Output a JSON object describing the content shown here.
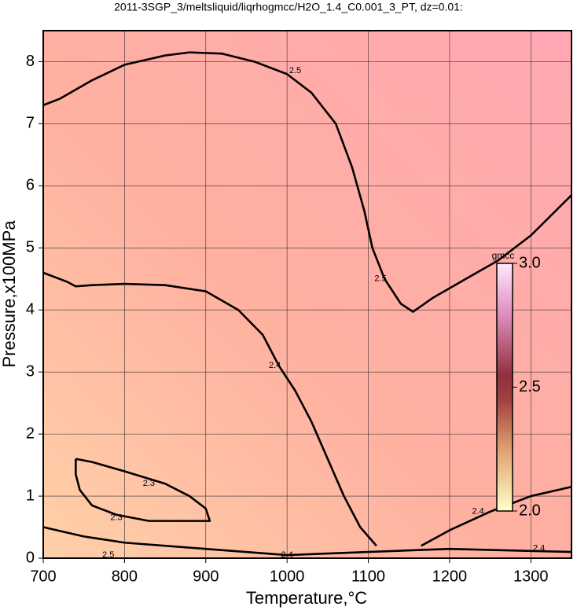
{
  "chart_data": {
    "type": "contour",
    "title": "2011-3SGP_3/meltsliquid/liqrhogmcc/H2O_1.4_C0.001_3_PT, dz=0.01:",
    "xlabel": "Temperature,°C",
    "ylabel": "Pressure,x100MPa",
    "xlim": [
      700,
      1350
    ],
    "ylim": [
      0,
      8.5
    ],
    "xticks": [
      700,
      800,
      900,
      1000,
      1100,
      1200,
      1300
    ],
    "yticks": [
      0,
      1,
      2,
      3,
      4,
      5,
      6,
      7,
      8
    ],
    "grid": true,
    "color": "#000000",
    "series": [
      {
        "name": "2.5",
        "x": [
          700,
          720,
          760,
          800,
          850,
          880,
          920,
          960,
          1000,
          1030,
          1060,
          1080,
          1095,
          1105,
          1120,
          1140,
          1155,
          1180,
          1220,
          1260,
          1300,
          1350
        ],
        "values": [
          7.3,
          7.4,
          7.7,
          7.95,
          8.1,
          8.15,
          8.13,
          8.0,
          7.8,
          7.5,
          7.0,
          6.3,
          5.6,
          5.0,
          4.5,
          4.1,
          3.97,
          4.2,
          4.5,
          4.8,
          5.2,
          5.85
        ]
      },
      {
        "name": "2.4",
        "x": [
          700,
          730,
          740,
          760,
          800,
          850,
          900,
          940,
          970,
          990,
          1010,
          1030,
          1050,
          1070,
          1090,
          1110
        ],
        "values": [
          4.6,
          4.45,
          4.38,
          4.4,
          4.42,
          4.4,
          4.3,
          4.0,
          3.6,
          3.1,
          2.7,
          2.2,
          1.6,
          1.0,
          0.5,
          0.2
        ]
      },
      {
        "name": "2.4",
        "x": [
          1165,
          1200,
          1250,
          1300,
          1350
        ],
        "values": [
          0.2,
          0.45,
          0.75,
          1.0,
          1.15
        ]
      },
      {
        "name": "2.4",
        "x": [
          700,
          750,
          800,
          900,
          1000,
          1100,
          1200,
          1350
        ],
        "values": [
          0.5,
          0.35,
          0.25,
          0.15,
          0.05,
          0.1,
          0.15,
          0.1
        ]
      },
      {
        "name": "2.3",
        "x": [
          740,
          760,
          800,
          850,
          880,
          900,
          905,
          880,
          830,
          790,
          760,
          745,
          740,
          740
        ],
        "values": [
          1.6,
          1.55,
          1.4,
          1.2,
          1.0,
          0.8,
          0.6,
          0.6,
          0.6,
          0.7,
          0.85,
          1.1,
          1.35,
          1.6
        ]
      }
    ],
    "annotations": [
      {
        "text": "2.5",
        "x": 1010,
        "y": 7.85
      },
      {
        "text": "2.5",
        "x": 1115,
        "y": 4.5
      },
      {
        "text": "2.4",
        "x": 985,
        "y": 3.1
      },
      {
        "text": "2.4",
        "x": 1235,
        "y": 0.75
      },
      {
        "text": "2.4",
        "x": 1000,
        "y": 0.05
      },
      {
        "text": "2.4",
        "x": 1310,
        "y": 0.16
      },
      {
        "text": "2.3",
        "x": 830,
        "y": 1.2
      },
      {
        "text": "2.3",
        "x": 790,
        "y": 0.65
      },
      {
        "text": "2.5",
        "x": 780,
        "y": 0.05
      }
    ],
    "colorbar": {
      "label": "gmcc",
      "lim": [
        2.0,
        3.0
      ],
      "ticks": [
        {
          "value": 2.0,
          "label": "2.0"
        },
        2.5,
        {
          "value": 3.0,
          "label": "3.0"
        }
      ]
    }
  }
}
